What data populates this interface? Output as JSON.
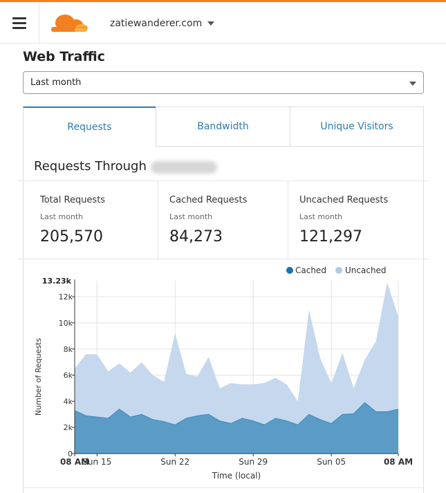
{
  "header": {
    "domain": "zatiewanderer.com",
    "menu_icon": "hamburger-icon",
    "logo_icon": "cloudflare-cloud-icon"
  },
  "page": {
    "title": "Web Traffic",
    "range_select": {
      "value": "Last month"
    }
  },
  "tabs": [
    {
      "label": "Requests",
      "active": true
    },
    {
      "label": "Bandwidth",
      "active": false
    },
    {
      "label": "Unique Visitors",
      "active": false
    }
  ],
  "section": {
    "title": "Requests Through"
  },
  "stats": [
    {
      "label": "Total Requests",
      "sub": "Last month",
      "value": "205,570"
    },
    {
      "label": "Cached Requests",
      "sub": "Last month",
      "value": "84,273"
    },
    {
      "label": "Uncached Requests",
      "sub": "Last month",
      "value": "121,297"
    }
  ],
  "colors": {
    "accent": "#f38020",
    "cached": "#5b9cc7",
    "uncached": "#c5d8ee",
    "tab_text": "#2c7cb0"
  },
  "chart_data": {
    "type": "area",
    "stacked": true,
    "xlabel": "Time (local)",
    "ylabel": "Number of Requests",
    "y_max_label": "13.23k",
    "ylim": [
      0,
      13230
    ],
    "y_ticks": [
      {
        "value": 0,
        "label": "0"
      },
      {
        "value": 2000,
        "label": "2k"
      },
      {
        "value": 4000,
        "label": "4k"
      },
      {
        "value": 6000,
        "label": "6k"
      },
      {
        "value": 8000,
        "label": "8k"
      },
      {
        "value": 10000,
        "label": "10k"
      },
      {
        "value": 12000,
        "label": "12k"
      }
    ],
    "x_ticks": [
      {
        "index": 0,
        "label": "08 AM",
        "bold": true
      },
      {
        "index": 2,
        "label": "Sun 15",
        "bold": false
      },
      {
        "index": 9,
        "label": "Sun 22",
        "bold": false
      },
      {
        "index": 16,
        "label": "Sun 29",
        "bold": false
      },
      {
        "index": 23,
        "label": "Sun 05",
        "bold": false
      },
      {
        "index": 29,
        "label": "08 AM",
        "bold": true
      }
    ],
    "legend_position": "top-right",
    "grid": true,
    "series": [
      {
        "name": "Cached",
        "values": [
          3300,
          2900,
          2800,
          2700,
          3400,
          2800,
          3000,
          2600,
          2450,
          2200,
          2700,
          2900,
          3000,
          2500,
          2300,
          2700,
          2500,
          2200,
          2700,
          2500,
          2200,
          3000,
          2600,
          2300,
          3000,
          3050,
          3900,
          3200,
          3200,
          3400
        ]
      },
      {
        "name": "Uncached",
        "values": [
          3200,
          4700,
          4800,
          3600,
          3500,
          3400,
          4000,
          3400,
          3050,
          7000,
          3400,
          3000,
          4400,
          2500,
          3100,
          2600,
          2800,
          3200,
          3100,
          2800,
          1800,
          8000,
          4700,
          3100,
          4700,
          1950,
          3300,
          5400,
          9900,
          7100
        ]
      }
    ]
  }
}
